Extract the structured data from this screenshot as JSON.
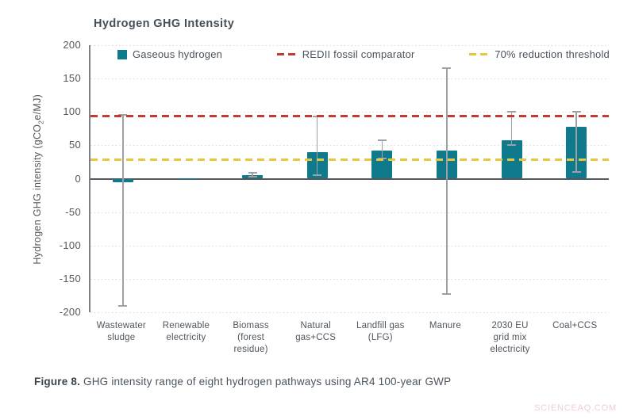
{
  "chart": {
    "title": "Hydrogen GHG Intensity",
    "ylabel_pre": "Hydrogen GHG intensity (gCO",
    "ylabel_sub": "2",
    "ylabel_post": "e/MJ)"
  },
  "caption": {
    "prefix": "Figure 8.",
    "text": " GHG intensity range of eight hydrogen pathways using AR4 100-year GWP"
  },
  "watermark": "SCIENCEAQ.COM",
  "colors": {
    "bar": "#0f7a8c",
    "error": "#9da1a5",
    "redii": "#c23a30",
    "threshold": "#eac63e"
  },
  "chart_data": {
    "type": "bar",
    "title": "Hydrogen GHG Intensity",
    "xlabel": "",
    "ylabel": "Hydrogen GHG intensity (gCO2e/MJ)",
    "ylim": [
      -200,
      200
    ],
    "ytick_step": 50,
    "grid": "horizontal-dotted",
    "legend_position": "top-inside",
    "categories": [
      "Wastewater sludge",
      "Renewable electricity",
      "Biomass (forest residue)",
      "Natural gas+CCS",
      "Landfill gas (LFG)",
      "Manure",
      "2030 EU grid mix electricity",
      "Coal+CCS"
    ],
    "category_lines": [
      [
        "Wastewater",
        "sludge"
      ],
      [
        "Renewable",
        "electricity"
      ],
      [
        "Biomass",
        "(forest",
        "residue)"
      ],
      [
        "Natural",
        "gas+CCS"
      ],
      [
        "Landfill gas",
        "(LFG)"
      ],
      [
        "Manure"
      ],
      [
        "2030 EU",
        "grid mix",
        "electricity"
      ],
      [
        "Coal+CCS"
      ]
    ],
    "series": [
      {
        "name": "Gaseous hydrogen",
        "values": [
          -5,
          1,
          5,
          40,
          42,
          42,
          57,
          78
        ]
      }
    ],
    "error_bars": {
      "low": [
        -190,
        null,
        3,
        5,
        30,
        -173,
        50,
        10
      ],
      "high": [
        95,
        null,
        9,
        93,
        57,
        165,
        100,
        100
      ]
    },
    "reference_lines": [
      {
        "label": "REDII fossil comparator",
        "value": 94,
        "style": "dashed",
        "color": "#c23a30"
      },
      {
        "label": "70% reduction threshold",
        "value": 28,
        "style": "dashed",
        "color": "#eac63e"
      }
    ],
    "legend": [
      {
        "label": "Gaseous hydrogen",
        "marker": "square",
        "color": "#0f7a8c"
      },
      {
        "label": "REDII fossil comparator",
        "marker": "dash",
        "color": "#c23a30"
      },
      {
        "label": "70% reduction threshold",
        "marker": "dash",
        "color": "#eac63e"
      }
    ]
  }
}
